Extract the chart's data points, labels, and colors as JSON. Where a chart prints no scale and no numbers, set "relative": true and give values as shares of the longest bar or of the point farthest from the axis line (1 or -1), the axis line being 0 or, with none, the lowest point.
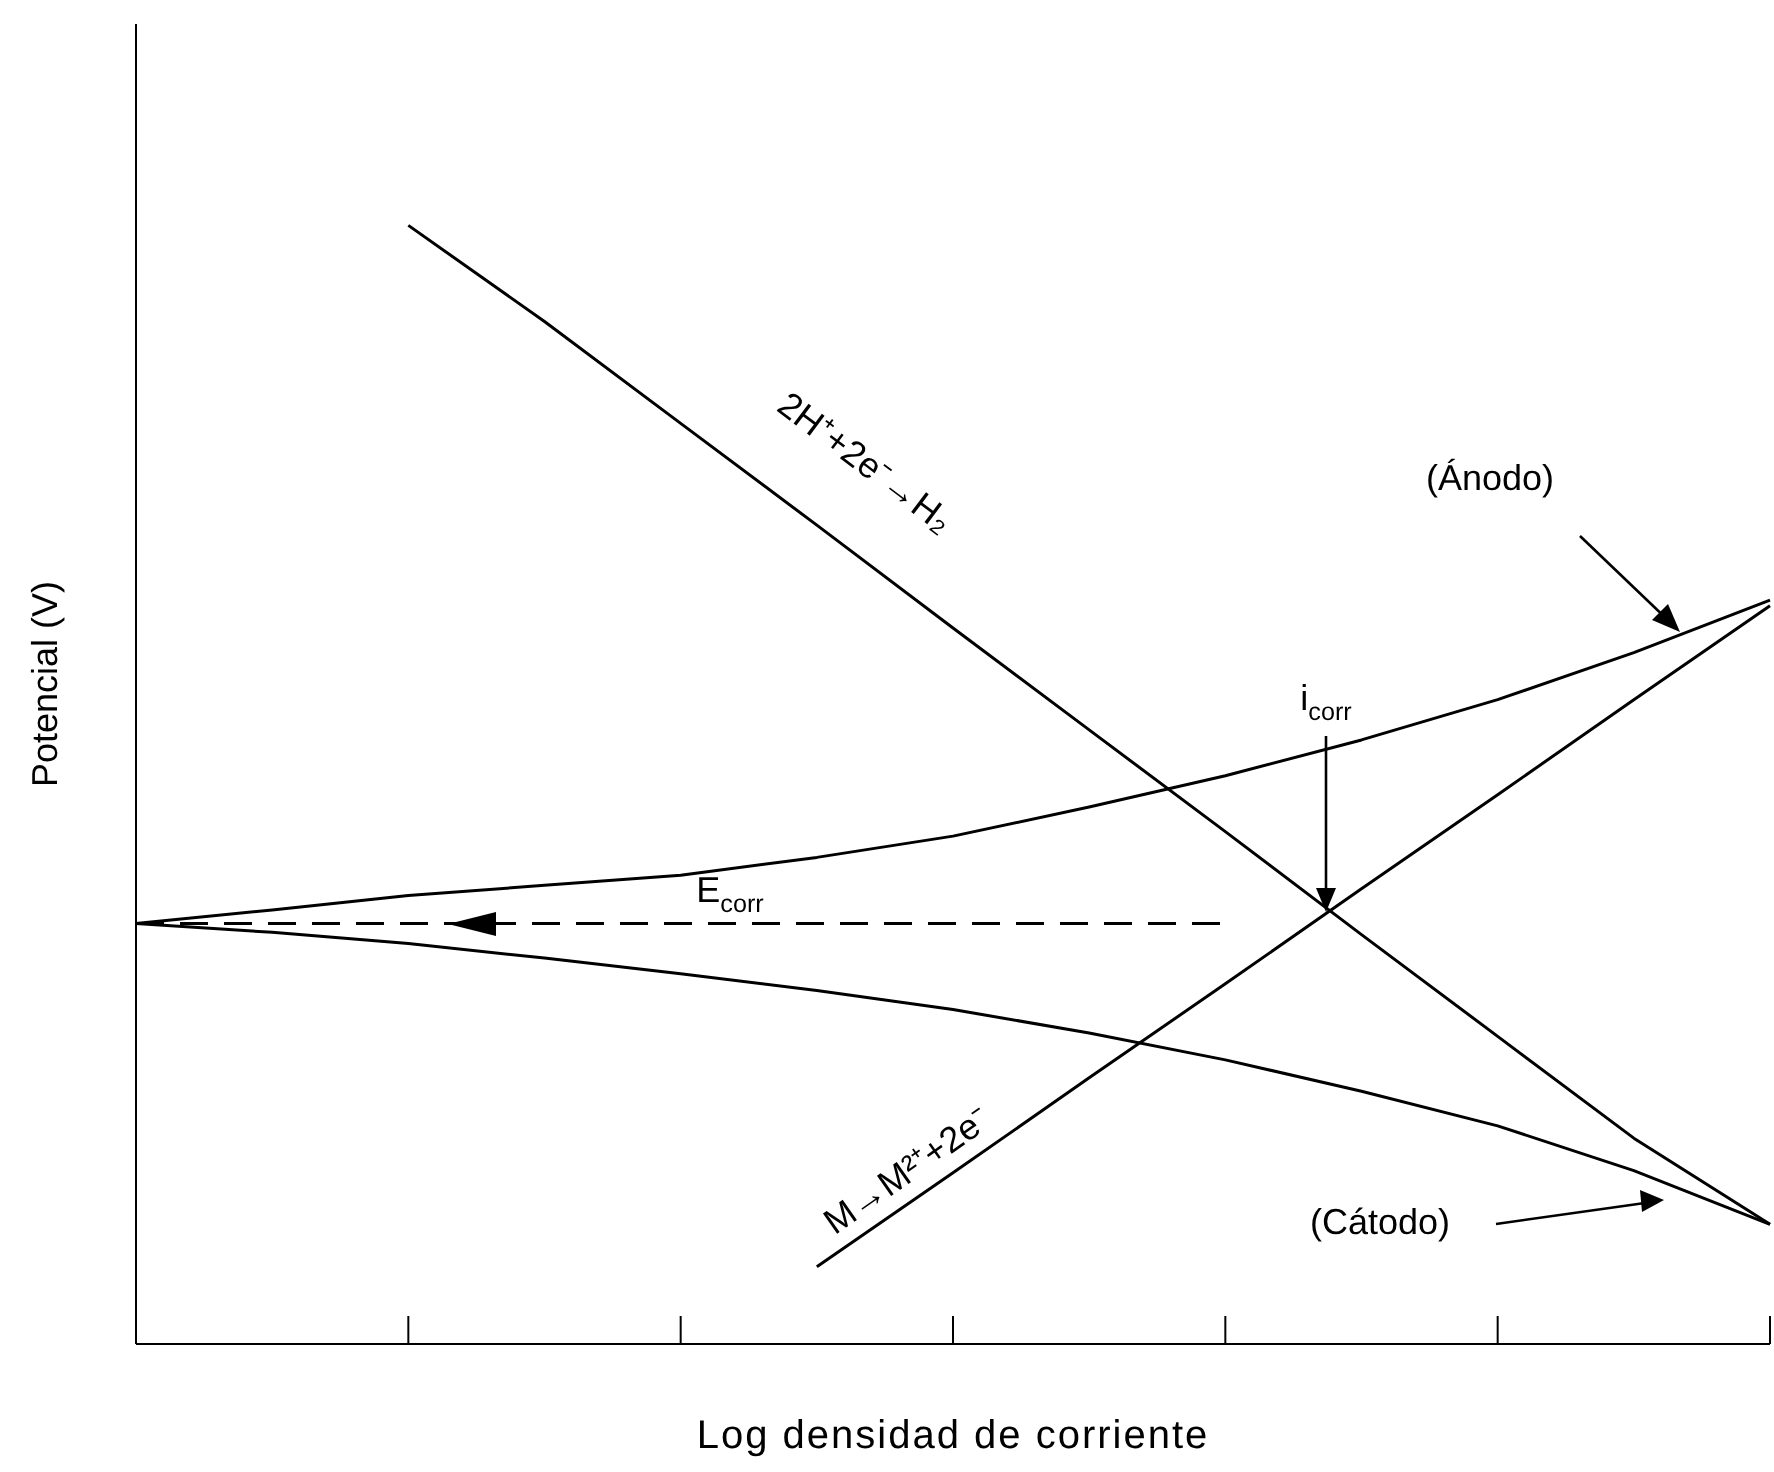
{
  "chart_data": {
    "type": "line",
    "xlabel": "Log densidad de corriente",
    "ylabel": "Potencial (V)",
    "relative": true,
    "marker": "none",
    "categories": [
      null,
      null,
      null,
      null,
      null,
      null,
      null,
      null,
      null,
      null,
      null,
      null,
      null
    ],
    "series": [
      {
        "color": "#000000",
        "values": [
          null,
          null,
          1.0,
          0.914,
          0.823,
          0.732,
          0.64,
          0.549,
          0.458,
          0.366,
          0.275,
          0.184,
          0.107
        ]
      },
      {
        "color": "#000000",
        "values": [
          0.376,
          0.388,
          0.401,
          0.41,
          0.419,
          0.435,
          0.454,
          0.48,
          0.508,
          0.54,
          0.576,
          0.618,
          0.665
        ]
      },
      {
        "color": "#000000",
        "values": [
          0.376,
          0.368,
          0.358,
          0.345,
          0.331,
          0.316,
          0.299,
          0.278,
          0.254,
          0.226,
          0.195,
          0.155,
          0.107
        ]
      },
      {
        "color": "#000000",
        "values": [
          null,
          null,
          null,
          null,
          null,
          0.069,
          0.153,
          0.238,
          0.322,
          0.407,
          0.491,
          0.576,
          0.66
        ]
      },
      {
        "color": "#000000",
        "line_style": "dashed",
        "values": [
          0.376,
          0.376,
          0.376,
          0.376,
          0.376,
          0.376,
          0.376,
          0.376,
          0.376,
          null,
          null,
          null,
          null
        ]
      }
    ],
    "annotations": [
      "2H⁺+2e⁻→H₂",
      "(Ánodo)",
      "i$_{corr}$",
      "E$_{corr}$",
      "(Cátodo)",
      "M→M²⁺+2e⁻"
    ]
  }
}
